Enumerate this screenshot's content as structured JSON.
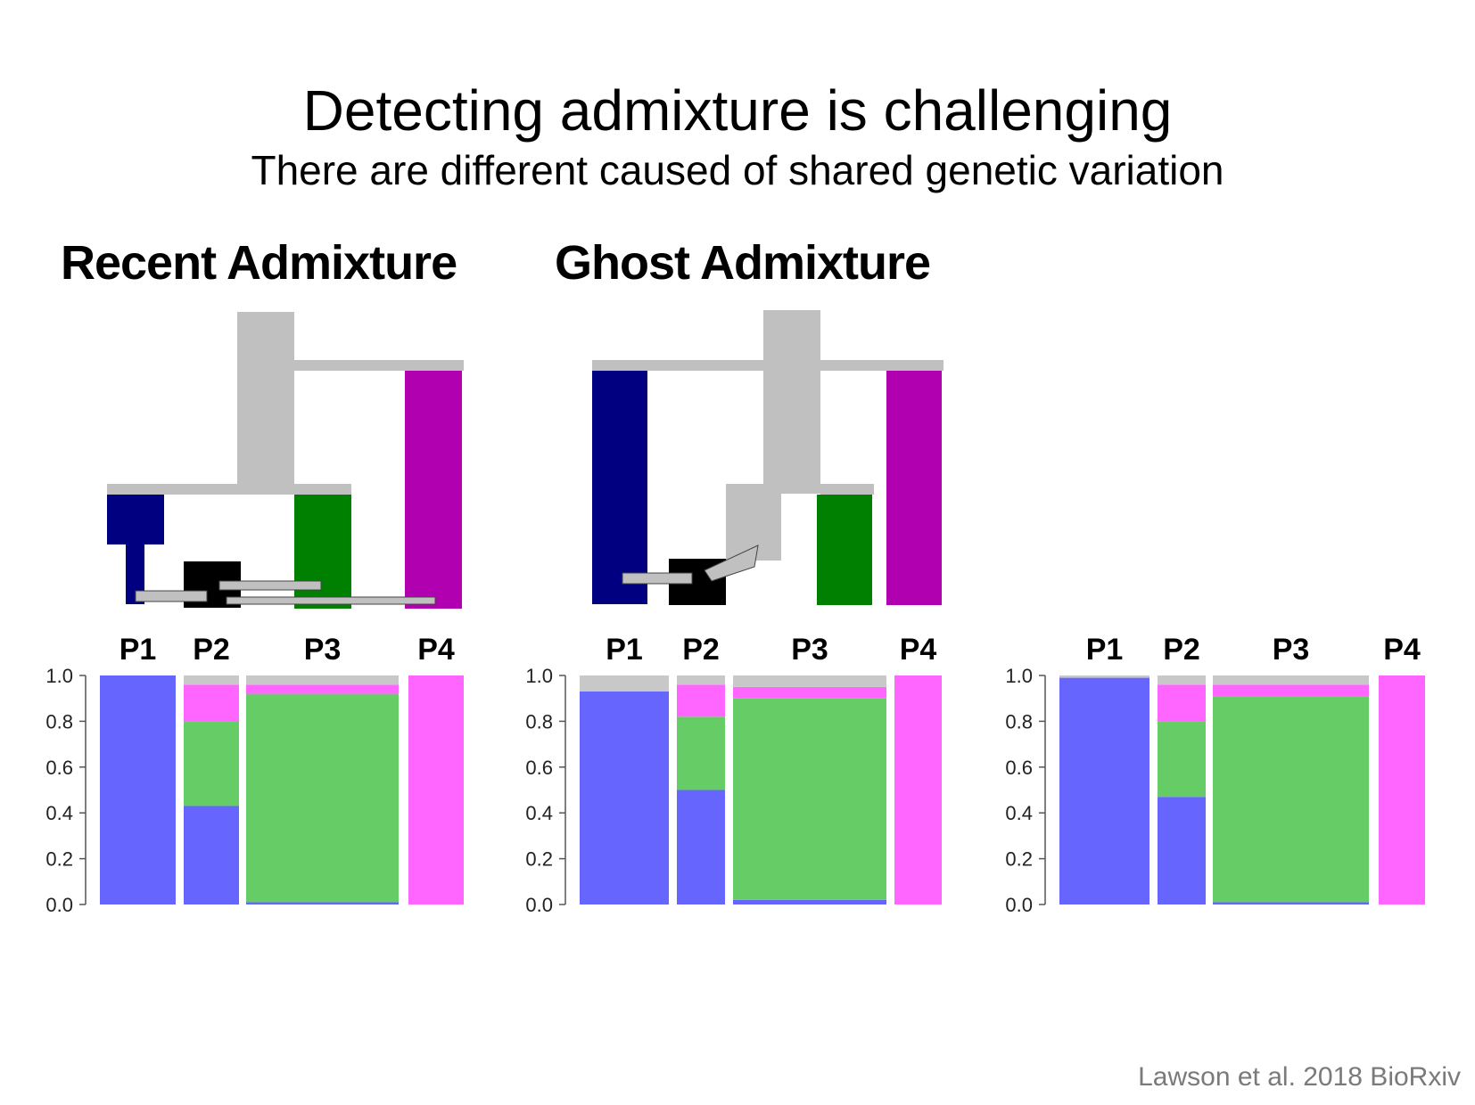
{
  "slide": {
    "title": "Detecting admixture is challenging",
    "subtitle": "There are different caused of shared genetic variation",
    "citation": "Lawson et al. 2018 BioRxiv"
  },
  "colors": {
    "tree_gray": "#c0c0c0",
    "p1_dark": "#000080",
    "p2_dark": "#000000",
    "p3_dark": "#008000",
    "p4_dark": "#b000b0",
    "anc_blue": "#6666ff",
    "anc_green": "#66cc66",
    "anc_pink": "#ff66ff",
    "anc_gray": "#c8c8c8"
  },
  "panels": [
    {
      "heading": "Recent Admixture",
      "population_labels": [
        "P1",
        "P2",
        "P3",
        "P4"
      ],
      "chart_data": {
        "type": "bar",
        "stacked": true,
        "ylim": [
          0,
          1
        ],
        "yticks": [
          "0.0",
          "0.2",
          "0.4",
          "0.6",
          "0.8",
          "1.0"
        ],
        "categories": [
          "P1",
          "P2",
          "P3",
          "P4"
        ],
        "series": [
          {
            "color": "blue",
            "values": [
              1.0,
              0.43,
              0.01,
              0.0
            ]
          },
          {
            "color": "green",
            "values": [
              0.0,
              0.37,
              0.91,
              0.0
            ]
          },
          {
            "color": "pink",
            "values": [
              0.0,
              0.16,
              0.04,
              1.0
            ]
          },
          {
            "color": "gray",
            "values": [
              0.0,
              0.04,
              0.04,
              0.0
            ]
          }
        ]
      }
    },
    {
      "heading": "Ghost Admixture",
      "population_labels": [
        "P1",
        "P2",
        "P3",
        "P4"
      ],
      "chart_data": {
        "type": "bar",
        "stacked": true,
        "ylim": [
          0,
          1
        ],
        "yticks": [
          "0.0",
          "0.2",
          "0.4",
          "0.6",
          "0.8",
          "1.0"
        ],
        "categories": [
          "P1",
          "P2",
          "P3",
          "P4"
        ],
        "series": [
          {
            "color": "blue",
            "values": [
              0.93,
              0.5,
              0.02,
              0.0
            ]
          },
          {
            "color": "green",
            "values": [
              0.0,
              0.32,
              0.88,
              0.0
            ]
          },
          {
            "color": "pink",
            "values": [
              0.0,
              0.14,
              0.05,
              1.0
            ]
          },
          {
            "color": "gray",
            "values": [
              0.07,
              0.04,
              0.05,
              0.0
            ]
          }
        ]
      }
    },
    {
      "heading": "",
      "population_labels": [
        "P1",
        "P2",
        "P3",
        "P4"
      ],
      "chart_data": {
        "type": "bar",
        "stacked": true,
        "ylim": [
          0,
          1
        ],
        "yticks": [
          "0.0",
          "0.2",
          "0.4",
          "0.6",
          "0.8",
          "1.0"
        ],
        "categories": [
          "P1",
          "P2",
          "P3",
          "P4"
        ],
        "series": [
          {
            "color": "blue",
            "values": [
              0.99,
              0.47,
              0.01,
              0.0
            ]
          },
          {
            "color": "green",
            "values": [
              0.0,
              0.33,
              0.9,
              0.0
            ]
          },
          {
            "color": "pink",
            "values": [
              0.0,
              0.16,
              0.05,
              1.0
            ]
          },
          {
            "color": "gray",
            "values": [
              0.01,
              0.04,
              0.04,
              0.0
            ]
          }
        ]
      }
    }
  ]
}
